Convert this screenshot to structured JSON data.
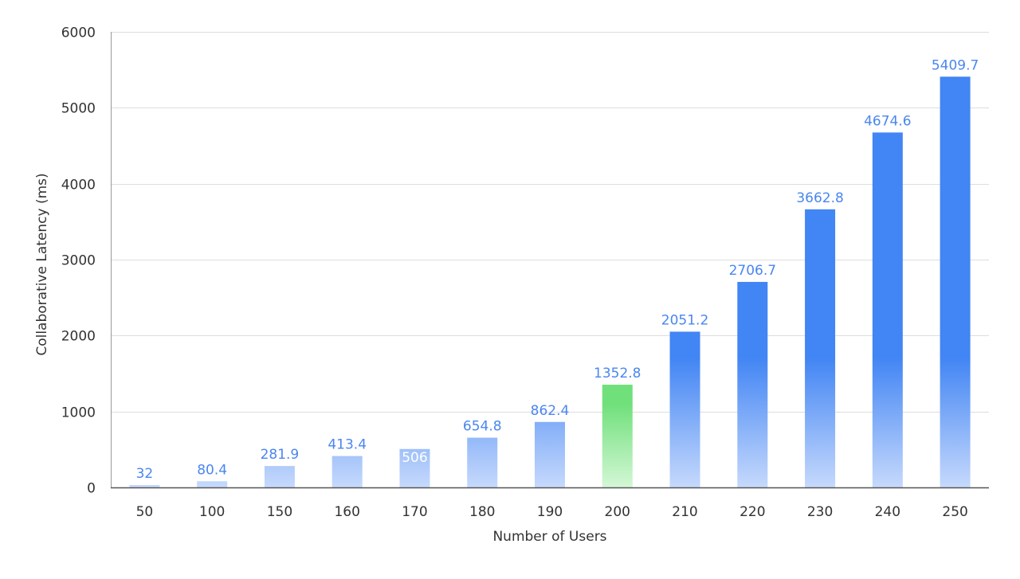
{
  "chart_data": {
    "type": "bar",
    "title": "",
    "xlabel": "Number of Users",
    "ylabel": "Collaborative Latency (ms)",
    "ylim": [
      0,
      6000
    ],
    "yticks": [
      0,
      1000,
      2000,
      3000,
      4000,
      5000,
      6000
    ],
    "grid": true,
    "categories": [
      "50",
      "100",
      "150",
      "160",
      "170",
      "180",
      "190",
      "200",
      "210",
      "220",
      "230",
      "240",
      "250"
    ],
    "values": [
      32,
      80.4,
      281.9,
      413.4,
      506,
      654.8,
      862.4,
      1352.8,
      2051.2,
      2706.7,
      3662.8,
      4674.6,
      5409.7
    ],
    "data_labels": [
      "32",
      "80.4",
      "281.9",
      "413.4",
      "506",
      "654.8",
      "862.4",
      "1352.8",
      "2051.2",
      "2706.7",
      "3662.8",
      "4674.6",
      "5409.7"
    ],
    "highlight_category": "200",
    "colors": {
      "bar": "#4285f4",
      "bar_light": "#c6d9fc",
      "highlight": "#6fe07a",
      "highlight_light": "#d4f7d6",
      "label": "#4a86f0",
      "axis_text": "#333333",
      "grid": "#dddddd"
    }
  }
}
